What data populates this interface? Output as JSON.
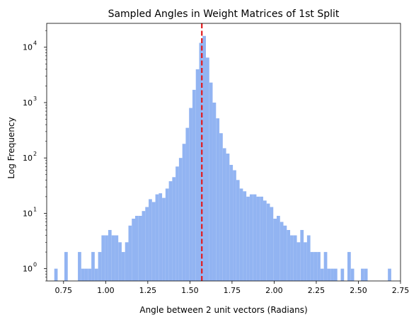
{
  "chart_data": {
    "type": "bar",
    "title": "Sampled Angles in Weight Matrices of 1st Split",
    "xlabel": "Angle between 2 unit vectors (Radians)",
    "ylabel": "Log Frequency",
    "xlim": [
      0.65,
      2.75
    ],
    "ylim": [
      0.6,
      27000
    ],
    "yscale": "log",
    "grid": false,
    "bar_color": "#92b4f2",
    "reference_line": {
      "x": 1.5708,
      "color": "#e31a1c",
      "style": "dashed"
    },
    "x_ticks": [
      {
        "value": 0.75,
        "label": "0.75"
      },
      {
        "value": 1.0,
        "label": "1.00"
      },
      {
        "value": 1.25,
        "label": "1.25"
      },
      {
        "value": 1.5,
        "label": "1.50"
      },
      {
        "value": 1.75,
        "label": "1.75"
      },
      {
        "value": 2.0,
        "label": "2.00"
      },
      {
        "value": 2.25,
        "label": "2.25"
      },
      {
        "value": 2.5,
        "label": "2.50"
      },
      {
        "value": 2.75,
        "label": "2.75"
      }
    ],
    "y_ticks": [
      {
        "value": 1,
        "base": "10",
        "exp": "0"
      },
      {
        "value": 10,
        "base": "10",
        "exp": "1"
      },
      {
        "value": 100,
        "base": "10",
        "exp": "2"
      },
      {
        "value": 1000,
        "base": "10",
        "exp": "3"
      },
      {
        "value": 10000,
        "base": "10",
        "exp": "4"
      }
    ],
    "bin_width": 0.0199,
    "bins": [
      [
        0.705,
        1
      ],
      [
        0.765,
        2
      ],
      [
        0.845,
        2
      ],
      [
        0.865,
        1
      ],
      [
        0.885,
        1
      ],
      [
        0.905,
        1
      ],
      [
        0.925,
        2
      ],
      [
        0.945,
        1
      ],
      [
        0.965,
        2
      ],
      [
        0.985,
        4
      ],
      [
        1.005,
        4
      ],
      [
        1.025,
        5
      ],
      [
        1.045,
        4
      ],
      [
        1.065,
        4
      ],
      [
        1.085,
        3
      ],
      [
        1.105,
        2
      ],
      [
        1.125,
        3
      ],
      [
        1.145,
        6
      ],
      [
        1.165,
        8
      ],
      [
        1.185,
        9
      ],
      [
        1.205,
        9
      ],
      [
        1.225,
        11
      ],
      [
        1.245,
        13
      ],
      [
        1.265,
        18
      ],
      [
        1.285,
        16
      ],
      [
        1.305,
        22
      ],
      [
        1.325,
        23
      ],
      [
        1.345,
        19
      ],
      [
        1.365,
        28
      ],
      [
        1.385,
        38
      ],
      [
        1.405,
        45
      ],
      [
        1.425,
        70
      ],
      [
        1.445,
        100
      ],
      [
        1.465,
        180
      ],
      [
        1.485,
        350
      ],
      [
        1.505,
        800
      ],
      [
        1.525,
        1700
      ],
      [
        1.545,
        4000
      ],
      [
        1.565,
        12000
      ],
      [
        1.585,
        16000
      ],
      [
        1.605,
        6500
      ],
      [
        1.625,
        2300
      ],
      [
        1.645,
        1000
      ],
      [
        1.665,
        520
      ],
      [
        1.685,
        280
      ],
      [
        1.705,
        150
      ],
      [
        1.725,
        120
      ],
      [
        1.745,
        75
      ],
      [
        1.765,
        60
      ],
      [
        1.785,
        40
      ],
      [
        1.805,
        28
      ],
      [
        1.825,
        25
      ],
      [
        1.845,
        20
      ],
      [
        1.865,
        22
      ],
      [
        1.885,
        22
      ],
      [
        1.905,
        20
      ],
      [
        1.925,
        20
      ],
      [
        1.945,
        17
      ],
      [
        1.965,
        15
      ],
      [
        1.985,
        13
      ],
      [
        2.005,
        8
      ],
      [
        2.025,
        9
      ],
      [
        2.045,
        7
      ],
      [
        2.065,
        6
      ],
      [
        2.085,
        5
      ],
      [
        2.105,
        4
      ],
      [
        2.125,
        4
      ],
      [
        2.145,
        3
      ],
      [
        2.165,
        5
      ],
      [
        2.185,
        3
      ],
      [
        2.205,
        4
      ],
      [
        2.225,
        2
      ],
      [
        2.245,
        2
      ],
      [
        2.265,
        2
      ],
      [
        2.285,
        1
      ],
      [
        2.305,
        2
      ],
      [
        2.325,
        1
      ],
      [
        2.345,
        1
      ],
      [
        2.365,
        1
      ],
      [
        2.405,
        1
      ],
      [
        2.445,
        2
      ],
      [
        2.465,
        1
      ],
      [
        2.525,
        1
      ],
      [
        2.545,
        1
      ],
      [
        2.685,
        1
      ]
    ]
  }
}
